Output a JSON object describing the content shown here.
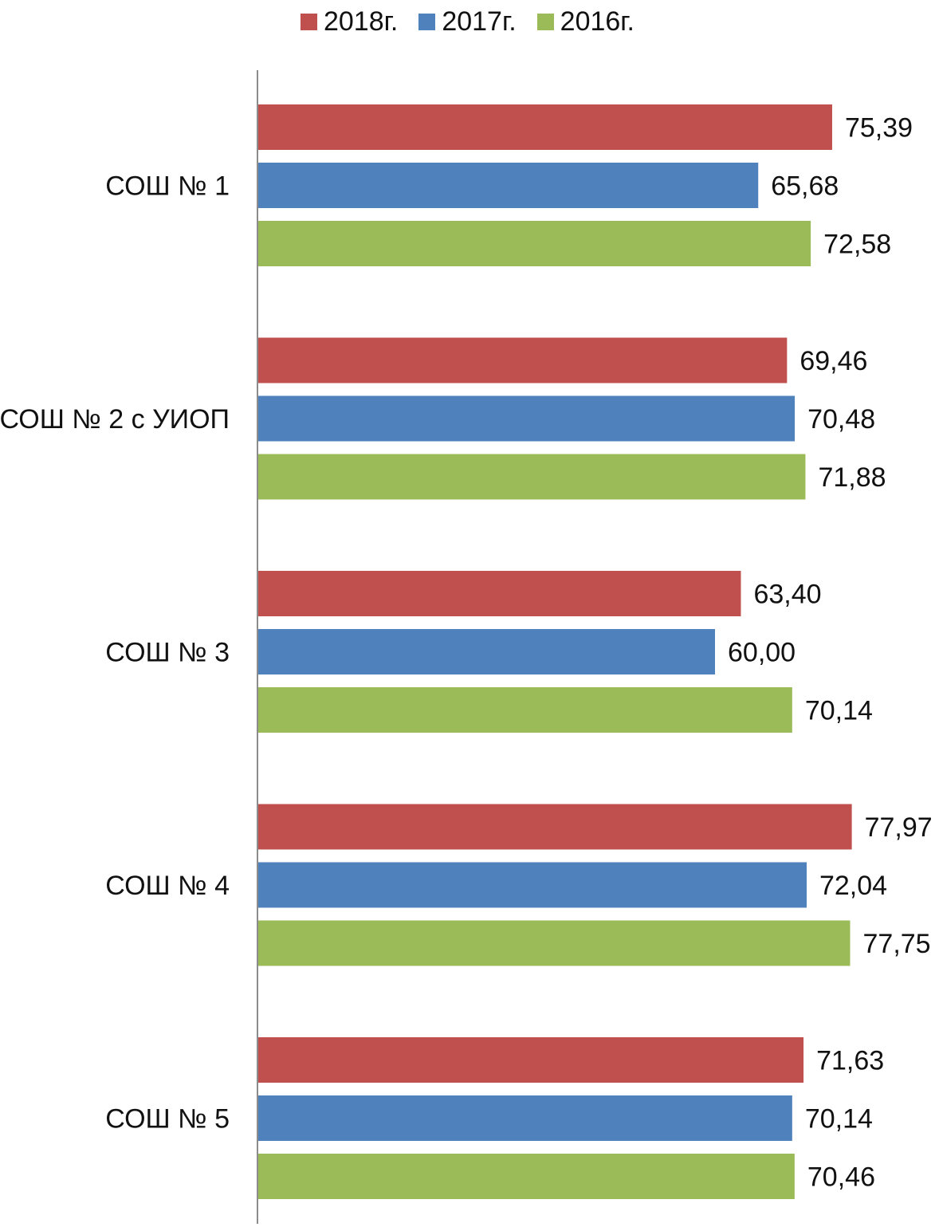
{
  "chart_data": {
    "type": "bar",
    "orientation": "horizontal",
    "categories": [
      "СОШ № 1",
      "СОШ № 2 с УИОП",
      "СОШ № 3",
      "СОШ № 4",
      "СОШ № 5"
    ],
    "series": [
      {
        "name": "2018г.",
        "color": "#C0504D",
        "values": [
          75.39,
          69.46,
          63.4,
          77.97,
          71.63
        ],
        "labels": [
          "75,39",
          "69,46",
          "63,40",
          "77,97",
          "71,63"
        ]
      },
      {
        "name": "2017г.",
        "color": "#4F81BD",
        "values": [
          65.68,
          70.48,
          60.0,
          72.04,
          70.14
        ],
        "labels": [
          "65,68",
          "70,48",
          "60,00",
          "72,04",
          "70,14"
        ]
      },
      {
        "name": "2016г.",
        "color": "#9BBB59",
        "values": [
          72.58,
          71.88,
          70.14,
          77.75,
          70.46
        ],
        "labels": [
          "72,58",
          "71,88",
          "70,14",
          "77,75",
          "70,46"
        ]
      }
    ],
    "xlim": [
      0,
      80
    ],
    "legend_position": "top",
    "grid": false,
    "data_labels": true
  }
}
